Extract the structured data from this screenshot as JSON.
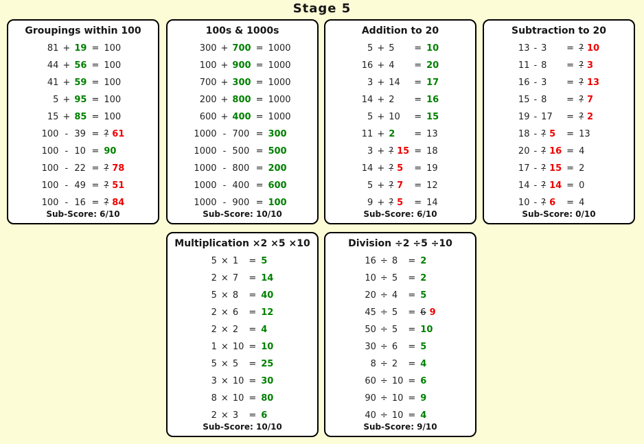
{
  "page": {
    "title": "Stage 5"
  },
  "symbols": {
    "equals": "="
  },
  "colors": {
    "page_bg": "#FCFCD6",
    "panel_bg": "#FFFFFF",
    "panel_border": "#000000",
    "ink": "#161616",
    "correct_green": "#008000",
    "wrong_red": "#EE0000"
  },
  "panels": [
    {
      "title": "Groupings within 100",
      "subscore": "Sub-Score: 6/10",
      "rows": [
        {
          "a": "81",
          "op": "+",
          "b": [
            {
              "t": "19",
              "c": "green"
            }
          ],
          "ans": [
            {
              "t": "100"
            }
          ]
        },
        {
          "a": "44",
          "op": "+",
          "b": [
            {
              "t": "56",
              "c": "green"
            }
          ],
          "ans": [
            {
              "t": "100"
            }
          ]
        },
        {
          "a": "41",
          "op": "+",
          "b": [
            {
              "t": "59",
              "c": "green"
            }
          ],
          "ans": [
            {
              "t": "100"
            }
          ]
        },
        {
          "a": "5",
          "op": "+",
          "b": [
            {
              "t": "95",
              "c": "green"
            }
          ],
          "ans": [
            {
              "t": "100"
            }
          ]
        },
        {
          "a": "15",
          "op": "+",
          "b": [
            {
              "t": "85",
              "c": "green"
            }
          ],
          "ans": [
            {
              "t": "100"
            }
          ]
        },
        {
          "a": "100",
          "op": "-",
          "b": [
            {
              "t": "39"
            }
          ],
          "ans": [
            {
              "t": "?",
              "c": "strike"
            },
            {
              "t": "61",
              "c": "red"
            }
          ]
        },
        {
          "a": "100",
          "op": "-",
          "b": [
            {
              "t": "10"
            }
          ],
          "ans": [
            {
              "t": "90",
              "c": "green"
            }
          ]
        },
        {
          "a": "100",
          "op": "-",
          "b": [
            {
              "t": "22"
            }
          ],
          "ans": [
            {
              "t": "?",
              "c": "strike"
            },
            {
              "t": "78",
              "c": "red"
            }
          ]
        },
        {
          "a": "100",
          "op": "-",
          "b": [
            {
              "t": "49"
            }
          ],
          "ans": [
            {
              "t": "?",
              "c": "strike"
            },
            {
              "t": "51",
              "c": "red"
            }
          ]
        },
        {
          "a": "100",
          "op": "-",
          "b": [
            {
              "t": "16"
            }
          ],
          "ans": [
            {
              "t": "?",
              "c": "strike"
            },
            {
              "t": "84",
              "c": "red"
            }
          ]
        }
      ]
    },
    {
      "title": "100s & 1000s",
      "subscore": "Sub-Score: 10/10",
      "rows": [
        {
          "a": "300",
          "op": "+",
          "b": [
            {
              "t": "700",
              "c": "green"
            }
          ],
          "ans": [
            {
              "t": "1000"
            }
          ]
        },
        {
          "a": "100",
          "op": "+",
          "b": [
            {
              "t": "900",
              "c": "green"
            }
          ],
          "ans": [
            {
              "t": "1000"
            }
          ]
        },
        {
          "a": "700",
          "op": "+",
          "b": [
            {
              "t": "300",
              "c": "green"
            }
          ],
          "ans": [
            {
              "t": "1000"
            }
          ]
        },
        {
          "a": "200",
          "op": "+",
          "b": [
            {
              "t": "800",
              "c": "green"
            }
          ],
          "ans": [
            {
              "t": "1000"
            }
          ]
        },
        {
          "a": "600",
          "op": "+",
          "b": [
            {
              "t": "400",
              "c": "green"
            }
          ],
          "ans": [
            {
              "t": "1000"
            }
          ]
        },
        {
          "a": "1000",
          "op": "-",
          "b": [
            {
              "t": "700"
            }
          ],
          "ans": [
            {
              "t": "300",
              "c": "green"
            }
          ]
        },
        {
          "a": "1000",
          "op": "-",
          "b": [
            {
              "t": "500"
            }
          ],
          "ans": [
            {
              "t": "500",
              "c": "green"
            }
          ]
        },
        {
          "a": "1000",
          "op": "-",
          "b": [
            {
              "t": "800"
            }
          ],
          "ans": [
            {
              "t": "200",
              "c": "green"
            }
          ]
        },
        {
          "a": "1000",
          "op": "-",
          "b": [
            {
              "t": "400"
            }
          ],
          "ans": [
            {
              "t": "600",
              "c": "green"
            }
          ]
        },
        {
          "a": "1000",
          "op": "-",
          "b": [
            {
              "t": "900"
            }
          ],
          "ans": [
            {
              "t": "100",
              "c": "green"
            }
          ]
        }
      ]
    },
    {
      "title": "Addition to 20",
      "subscore": "Sub-Score: 6/10",
      "rows": [
        {
          "a": "5",
          "op": "+",
          "b": [
            {
              "t": "5"
            }
          ],
          "ans": [
            {
              "t": "10",
              "c": "green"
            }
          ]
        },
        {
          "a": "16",
          "op": "+",
          "b": [
            {
              "t": "4"
            }
          ],
          "ans": [
            {
              "t": "20",
              "c": "green"
            }
          ]
        },
        {
          "a": "3",
          "op": "+",
          "b": [
            {
              "t": "14"
            }
          ],
          "ans": [
            {
              "t": "17",
              "c": "green"
            }
          ]
        },
        {
          "a": "14",
          "op": "+",
          "b": [
            {
              "t": "2"
            }
          ],
          "ans": [
            {
              "t": "16",
              "c": "green"
            }
          ]
        },
        {
          "a": "5",
          "op": "+",
          "b": [
            {
              "t": "10"
            }
          ],
          "ans": [
            {
              "t": "15",
              "c": "green"
            }
          ]
        },
        {
          "a": "11",
          "op": "+",
          "b": [
            {
              "t": "2",
              "c": "green"
            }
          ],
          "ans": [
            {
              "t": "13"
            }
          ]
        },
        {
          "a": "3",
          "op": "+",
          "b": [
            {
              "t": "?",
              "c": "strike"
            },
            {
              "t": "15",
              "c": "red"
            }
          ],
          "ans": [
            {
              "t": "18"
            }
          ]
        },
        {
          "a": "14",
          "op": "+",
          "b": [
            {
              "t": "?",
              "c": "strike"
            },
            {
              "t": "5",
              "c": "red"
            }
          ],
          "ans": [
            {
              "t": "19"
            }
          ]
        },
        {
          "a": "5",
          "op": "+",
          "b": [
            {
              "t": "?",
              "c": "strike"
            },
            {
              "t": "7",
              "c": "red"
            }
          ],
          "ans": [
            {
              "t": "12"
            }
          ]
        },
        {
          "a": "9",
          "op": "+",
          "b": [
            {
              "t": "?",
              "c": "strike"
            },
            {
              "t": "5",
              "c": "red"
            }
          ],
          "ans": [
            {
              "t": "14"
            }
          ]
        }
      ]
    },
    {
      "title": "Subtraction to 20",
      "subscore": "Sub-Score: 0/10",
      "rows": [
        {
          "a": "13",
          "op": "-",
          "b": [
            {
              "t": "3"
            }
          ],
          "ans": [
            {
              "t": "?",
              "c": "strike"
            },
            {
              "t": "10",
              "c": "red"
            }
          ]
        },
        {
          "a": "11",
          "op": "-",
          "b": [
            {
              "t": "8"
            }
          ],
          "ans": [
            {
              "t": "?",
              "c": "strike"
            },
            {
              "t": "3",
              "c": "red"
            }
          ]
        },
        {
          "a": "16",
          "op": "-",
          "b": [
            {
              "t": "3"
            }
          ],
          "ans": [
            {
              "t": "?",
              "c": "strike"
            },
            {
              "t": "13",
              "c": "red"
            }
          ]
        },
        {
          "a": "15",
          "op": "-",
          "b": [
            {
              "t": "8"
            }
          ],
          "ans": [
            {
              "t": "?",
              "c": "strike"
            },
            {
              "t": "7",
              "c": "red"
            }
          ]
        },
        {
          "a": "19",
          "op": "-",
          "b": [
            {
              "t": "17"
            }
          ],
          "ans": [
            {
              "t": "?",
              "c": "strike"
            },
            {
              "t": "2",
              "c": "red"
            }
          ]
        },
        {
          "a": "18",
          "op": "-",
          "b": [
            {
              "t": "?",
              "c": "strike"
            },
            {
              "t": "5",
              "c": "red"
            }
          ],
          "ans": [
            {
              "t": "13"
            }
          ]
        },
        {
          "a": "20",
          "op": "-",
          "b": [
            {
              "t": "?",
              "c": "strike"
            },
            {
              "t": "16",
              "c": "red"
            }
          ],
          "ans": [
            {
              "t": "4"
            }
          ]
        },
        {
          "a": "17",
          "op": "-",
          "b": [
            {
              "t": "?",
              "c": "strike"
            },
            {
              "t": "15",
              "c": "red"
            }
          ],
          "ans": [
            {
              "t": "2"
            }
          ]
        },
        {
          "a": "14",
          "op": "-",
          "b": [
            {
              "t": "?",
              "c": "strike"
            },
            {
              "t": "14",
              "c": "red"
            }
          ],
          "ans": [
            {
              "t": "0"
            }
          ]
        },
        {
          "a": "10",
          "op": "-",
          "b": [
            {
              "t": "?",
              "c": "strike"
            },
            {
              "t": "6",
              "c": "red"
            }
          ],
          "ans": [
            {
              "t": "4"
            }
          ]
        }
      ]
    },
    {
      "title": "Multiplication ×2 ×5 ×10",
      "subscore": "Sub-Score: 10/10",
      "rows": [
        {
          "a": "5",
          "op": "×",
          "b": [
            {
              "t": "1"
            }
          ],
          "ans": [
            {
              "t": "5",
              "c": "green"
            }
          ]
        },
        {
          "a": "2",
          "op": "×",
          "b": [
            {
              "t": "7"
            }
          ],
          "ans": [
            {
              "t": "14",
              "c": "green"
            }
          ]
        },
        {
          "a": "5",
          "op": "×",
          "b": [
            {
              "t": "8"
            }
          ],
          "ans": [
            {
              "t": "40",
              "c": "green"
            }
          ]
        },
        {
          "a": "2",
          "op": "×",
          "b": [
            {
              "t": "6"
            }
          ],
          "ans": [
            {
              "t": "12",
              "c": "green"
            }
          ]
        },
        {
          "a": "2",
          "op": "×",
          "b": [
            {
              "t": "2"
            }
          ],
          "ans": [
            {
              "t": "4",
              "c": "green"
            }
          ]
        },
        {
          "a": "1",
          "op": "×",
          "b": [
            {
              "t": "10"
            }
          ],
          "ans": [
            {
              "t": "10",
              "c": "green"
            }
          ]
        },
        {
          "a": "5",
          "op": "×",
          "b": [
            {
              "t": "5"
            }
          ],
          "ans": [
            {
              "t": "25",
              "c": "green"
            }
          ]
        },
        {
          "a": "3",
          "op": "×",
          "b": [
            {
              "t": "10"
            }
          ],
          "ans": [
            {
              "t": "30",
              "c": "green"
            }
          ]
        },
        {
          "a": "8",
          "op": "×",
          "b": [
            {
              "t": "10"
            }
          ],
          "ans": [
            {
              "t": "80",
              "c": "green"
            }
          ]
        },
        {
          "a": "2",
          "op": "×",
          "b": [
            {
              "t": "3"
            }
          ],
          "ans": [
            {
              "t": "6",
              "c": "green"
            }
          ]
        }
      ]
    },
    {
      "title": "Division ÷2 ÷5 ÷10",
      "subscore": "Sub-Score: 9/10",
      "rows": [
        {
          "a": "16",
          "op": "÷",
          "b": [
            {
              "t": "8"
            }
          ],
          "ans": [
            {
              "t": "2",
              "c": "green"
            }
          ]
        },
        {
          "a": "10",
          "op": "÷",
          "b": [
            {
              "t": "5"
            }
          ],
          "ans": [
            {
              "t": "2",
              "c": "green"
            }
          ]
        },
        {
          "a": "20",
          "op": "÷",
          "b": [
            {
              "t": "4"
            }
          ],
          "ans": [
            {
              "t": "5",
              "c": "green"
            }
          ]
        },
        {
          "a": "45",
          "op": "÷",
          "b": [
            {
              "t": "5"
            }
          ],
          "ans": [
            {
              "t": "6",
              "c": "strike"
            },
            {
              "t": "9",
              "c": "red"
            }
          ]
        },
        {
          "a": "50",
          "op": "÷",
          "b": [
            {
              "t": "5"
            }
          ],
          "ans": [
            {
              "t": "10",
              "c": "green"
            }
          ]
        },
        {
          "a": "30",
          "op": "÷",
          "b": [
            {
              "t": "6"
            }
          ],
          "ans": [
            {
              "t": "5",
              "c": "green"
            }
          ]
        },
        {
          "a": "8",
          "op": "÷",
          "b": [
            {
              "t": "2"
            }
          ],
          "ans": [
            {
              "t": "4",
              "c": "green"
            }
          ]
        },
        {
          "a": "60",
          "op": "÷",
          "b": [
            {
              "t": "10"
            }
          ],
          "ans": [
            {
              "t": "6",
              "c": "green"
            }
          ]
        },
        {
          "a": "90",
          "op": "÷",
          "b": [
            {
              "t": "10"
            }
          ],
          "ans": [
            {
              "t": "9",
              "c": "green"
            }
          ]
        },
        {
          "a": "40",
          "op": "÷",
          "b": [
            {
              "t": "10"
            }
          ],
          "ans": [
            {
              "t": "4",
              "c": "green"
            }
          ]
        }
      ]
    }
  ]
}
